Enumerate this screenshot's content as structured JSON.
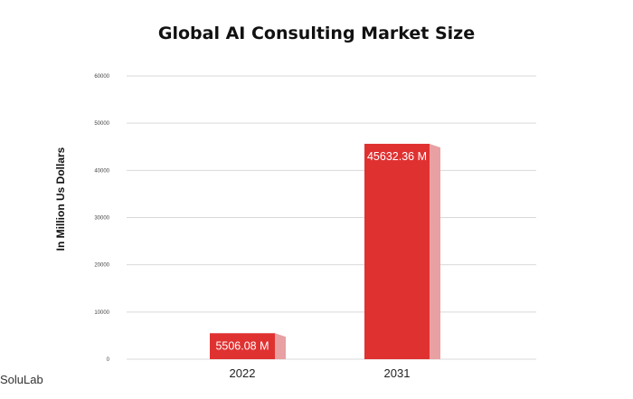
{
  "chart_data": {
    "type": "bar",
    "title": "Global AI Consulting Market Size",
    "xlabel": "",
    "ylabel": "In Million Us Dollars",
    "categories": [
      "2022",
      "2031"
    ],
    "values": [
      5506.08,
      45632.36
    ],
    "data_labels": [
      "5506.08 M",
      "45632.36 M"
    ],
    "ylim": [
      0,
      60000
    ],
    "yticks": [
      0,
      10000,
      20000,
      30000,
      40000,
      50000,
      60000
    ],
    "ytick_labels": [
      "0",
      "10000",
      "20000",
      "30000",
      "40000",
      "50000",
      "60000"
    ],
    "grid": true,
    "legend": "none",
    "bar_color": "#e03131",
    "bar_shadow_color": "#e8a0a2"
  },
  "watermark": "SoluLab"
}
